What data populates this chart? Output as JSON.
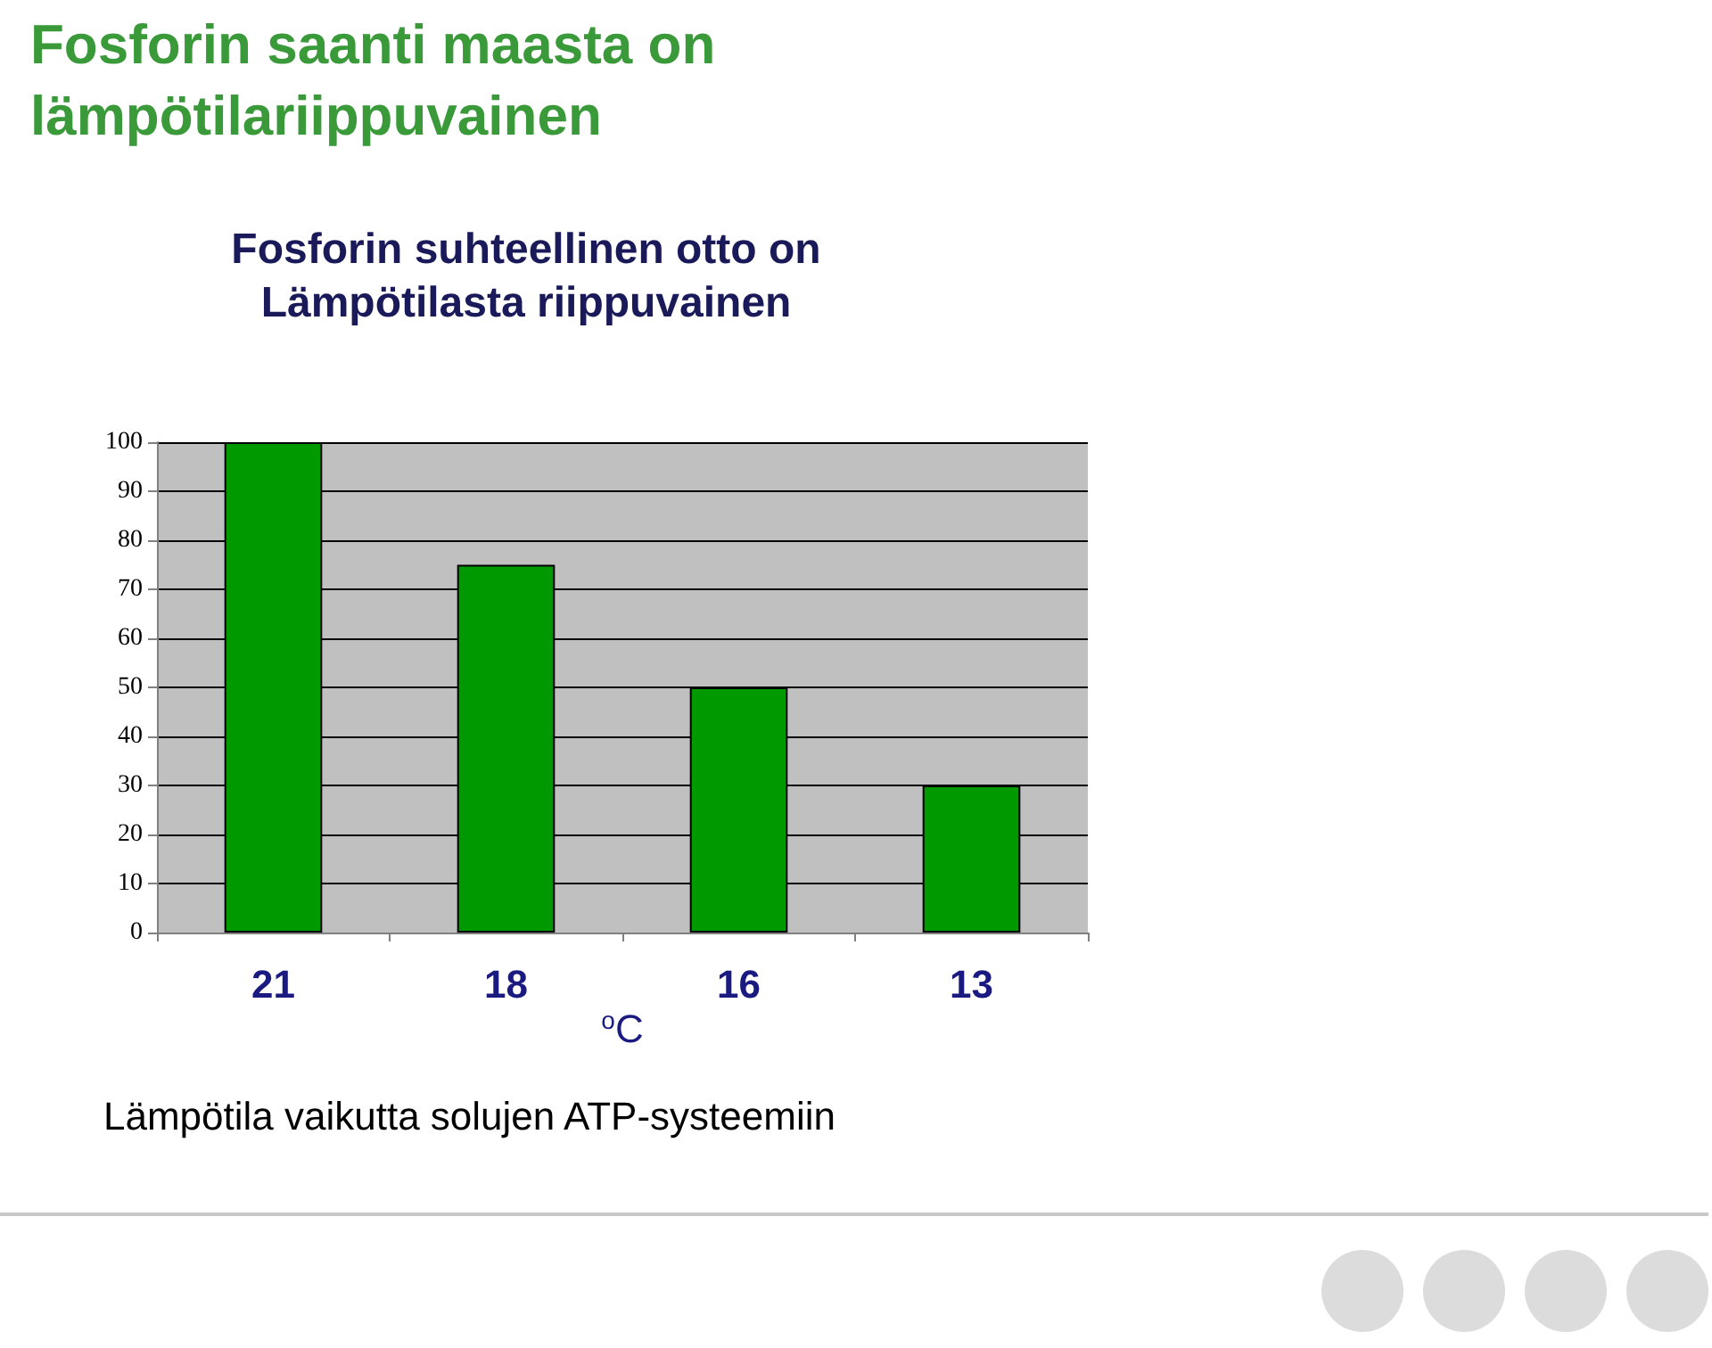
{
  "chart_data": {
    "type": "bar",
    "title": "Fosforin saanti maasta on lämpötilariippuvainen",
    "subtitle": "Fosforin suhteellinen otto on\nLämpötilasta riippuvainen",
    "xlabel": "$^{o}$C",
    "annotations": [
      "Lämpötila vaikutta solujen ATP-systeemiin"
    ],
    "categories": [
      "21",
      "18",
      "16",
      "13"
    ],
    "values": [
      100,
      75,
      50,
      30
    ],
    "color": "#009900",
    "ylim": [
      0,
      100
    ],
    "yticks": [
      0,
      10,
      20,
      30,
      40,
      50,
      60,
      70,
      80,
      90,
      100
    ],
    "grid": "y"
  }
}
